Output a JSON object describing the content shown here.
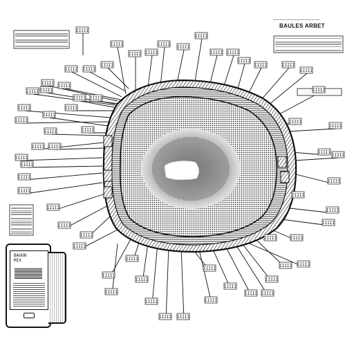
{
  "header": {
    "title": "BAULES ARBET"
  },
  "device": {
    "screen_text": "BAUUN\nREX"
  },
  "labels": [
    {
      "text": "IIIII"
    },
    {
      "text": "IIIII"
    },
    {
      "text": "IIIII"
    },
    {
      "text": "IIIII"
    },
    {
      "text": "IIIII"
    },
    {
      "text": "IIIII"
    },
    {
      "text": "IIIII"
    },
    {
      "text": "IIIII"
    },
    {
      "text": "IIIII"
    },
    {
      "text": "IIIII"
    },
    {
      "text": "IIIII"
    },
    {
      "text": "IIIII"
    },
    {
      "text": "IIIII"
    },
    {
      "text": "IIIII"
    },
    {
      "text": "IIIII"
    },
    {
      "text": "IIIII"
    },
    {
      "text": "IIIII"
    },
    {
      "text": "IIIII"
    },
    {
      "text": "IIIII"
    },
    {
      "text": "IIIII"
    },
    {
      "text": "IIIII"
    },
    {
      "text": "IIIII"
    },
    {
      "text": "IIIII"
    },
    {
      "text": "IIIII"
    },
    {
      "text": "IIIII"
    },
    {
      "text": "IIIII"
    },
    {
      "text": "IIIII"
    },
    {
      "text": "IIIII"
    },
    {
      "text": "IIIII"
    },
    {
      "text": "IIIII"
    },
    {
      "text": "IIIII"
    },
    {
      "text": "IIIII"
    },
    {
      "text": "IIIII"
    },
    {
      "text": "IIIII"
    },
    {
      "text": "IIIII"
    },
    {
      "text": "IIIII"
    },
    {
      "text": "IIIII"
    },
    {
      "text": "IIIII"
    },
    {
      "text": "IIIII"
    },
    {
      "text": "IIIII"
    },
    {
      "text": "IIIII"
    },
    {
      "text": "IIIII"
    },
    {
      "text": "IIIII"
    },
    {
      "text": "IIIII"
    },
    {
      "text": "IIIII"
    },
    {
      "text": "IIIII"
    },
    {
      "text": "IIIII"
    },
    {
      "text": "IIIII"
    },
    {
      "text": "IIIII"
    },
    {
      "text": "IIIII"
    },
    {
      "text": "IIIII"
    },
    {
      "text": "IIIII"
    },
    {
      "text": "IIIII"
    },
    {
      "text": "IIIII"
    },
    {
      "text": "IIIII"
    },
    {
      "text": "IIIII"
    },
    {
      "text": "IIIII"
    },
    {
      "text": "IIIII"
    },
    {
      "text": "IIIII"
    },
    {
      "text": "IIIII"
    },
    {
      "text": "IIIII"
    },
    {
      "text": "IIIII"
    },
    {
      "text": "IIIII"
    },
    {
      "text": "IIIII"
    }
  ]
}
